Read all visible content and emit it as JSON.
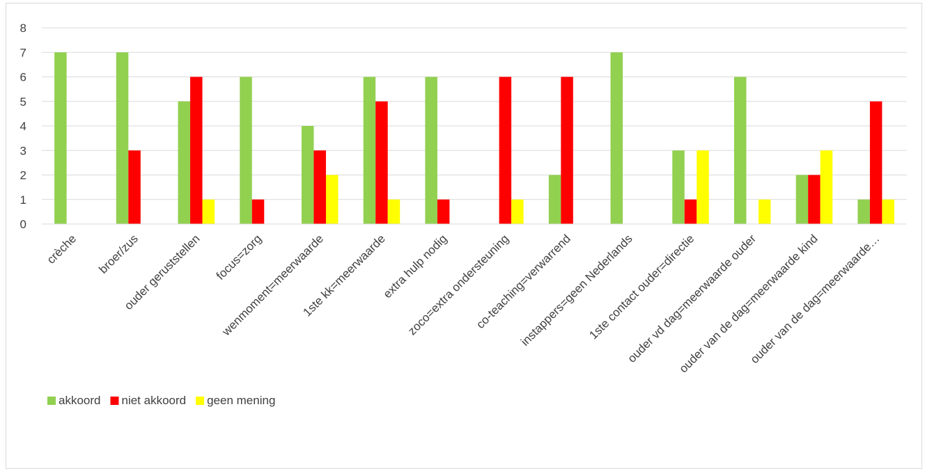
{
  "chart_data": {
    "type": "bar",
    "title": "",
    "xlabel": "",
    "ylabel": "",
    "ylim": [
      0,
      8
    ],
    "yticks": [
      0,
      1,
      2,
      3,
      4,
      5,
      6,
      7,
      8
    ],
    "grid": true,
    "legend_position": "bottom-left",
    "categories": [
      "crèche",
      "broer/zus",
      "ouder geruststellen",
      "focus=zorg",
      "wenmoment=meerwaarde",
      "1ste kk=meerwaarde",
      "extra hulp nodig",
      "zoco=extra ondersteuning",
      "co-teaching=verwarrend",
      "instappers=geen Nederlands",
      "1ste contact ouder=directie",
      "ouder vd dag=meerwaarde ouder",
      "ouder van de dag=meerwaarde kind",
      "ouder van de dag=meerwaarde…"
    ],
    "series": [
      {
        "name": "akkoord",
        "color": "#92d050",
        "values": [
          7,
          7,
          5,
          6,
          4,
          6,
          6,
          0,
          2,
          7,
          3,
          6,
          2,
          1
        ]
      },
      {
        "name": "niet akkoord",
        "color": "#ff0000",
        "values": [
          0,
          3,
          6,
          1,
          3,
          5,
          1,
          6,
          6,
          0,
          1,
          0,
          2,
          5
        ]
      },
      {
        "name": "geen mening",
        "color": "#ffff00",
        "values": [
          0,
          0,
          1,
          0,
          2,
          1,
          0,
          1,
          0,
          0,
          3,
          1,
          3,
          1
        ]
      }
    ]
  }
}
